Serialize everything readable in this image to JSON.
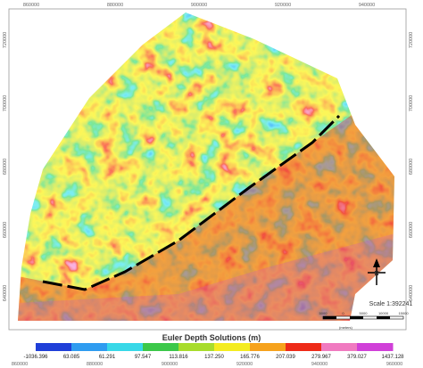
{
  "map": {
    "top_x_labels": [
      "860000",
      "880000",
      "900000",
      "920000",
      "940000"
    ],
    "bottom_x_labels": [
      "860000",
      "880000",
      "900000",
      "920000",
      "940000",
      "960000"
    ],
    "left_y_labels": [
      "720000",
      "700000",
      "680000",
      "660000",
      "640000"
    ],
    "right_y_labels": [
      "720000",
      "700000",
      "680000",
      "660000",
      "640000"
    ]
  },
  "legend": {
    "title": "Euler Depth Solutions (m)",
    "labels": [
      "-1036.396",
      "63.085",
      "61.291",
      "97.547",
      "113.816",
      "137.250",
      "165.776",
      "207.039",
      "279.967",
      "379.027",
      "1437.128"
    ],
    "colors": [
      "#1f3fd8",
      "#2f9cf0",
      "#38d8e8",
      "#3cc84a",
      "#a8dc2c",
      "#f4ec20",
      "#f6a21c",
      "#ee2a18",
      "#f07ac0",
      "#d040d8"
    ]
  },
  "scale": {
    "text": "Scale 1:392241",
    "bar_labels": [
      "5000",
      "0",
      "5000",
      "10000",
      "15000"
    ],
    "unit": "(meters)"
  },
  "north": "N"
}
